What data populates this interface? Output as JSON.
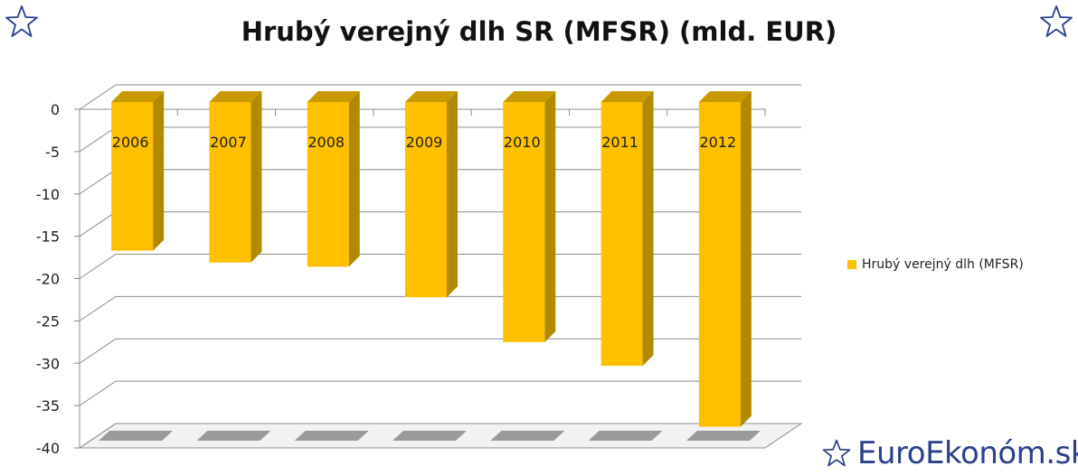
{
  "title": "Hrubý verejný dlh SR (MFSR) (mld. EUR)",
  "brand": "EuroEkonóm.sk",
  "icons": {
    "corner_star": "star-outline-icon",
    "brand_star": "star-outline-icon"
  },
  "colors": {
    "bar_front": "#ffc000",
    "bar_side": "#b38900",
    "bar_top": "#c99a00",
    "grid": "#8c8c8c",
    "floor": "#f2f2f2",
    "floor_tile": "#9a9a9a",
    "brand": "#2b3f8c"
  },
  "chart_data": {
    "type": "bar",
    "title": "Hrubý verejný dlh SR (MFSR) (mld. EUR)",
    "categories": [
      "2006",
      "2007",
      "2008",
      "2009",
      "2010",
      "2011",
      "2012"
    ],
    "series": [
      {
        "name": "Hrubý verejný dlh (MFSR)",
        "values": [
          -16.7,
          -18.1,
          -18.6,
          -22.2,
          -27.5,
          -30.3,
          -37.5
        ]
      }
    ],
    "ylim": [
      -40,
      0
    ],
    "yticks": [
      "0",
      "-5",
      "-10",
      "-15",
      "-20",
      "-25",
      "-30",
      "-35",
      "-40"
    ],
    "grid": true,
    "legend_position": "right",
    "style": "3d-column"
  }
}
